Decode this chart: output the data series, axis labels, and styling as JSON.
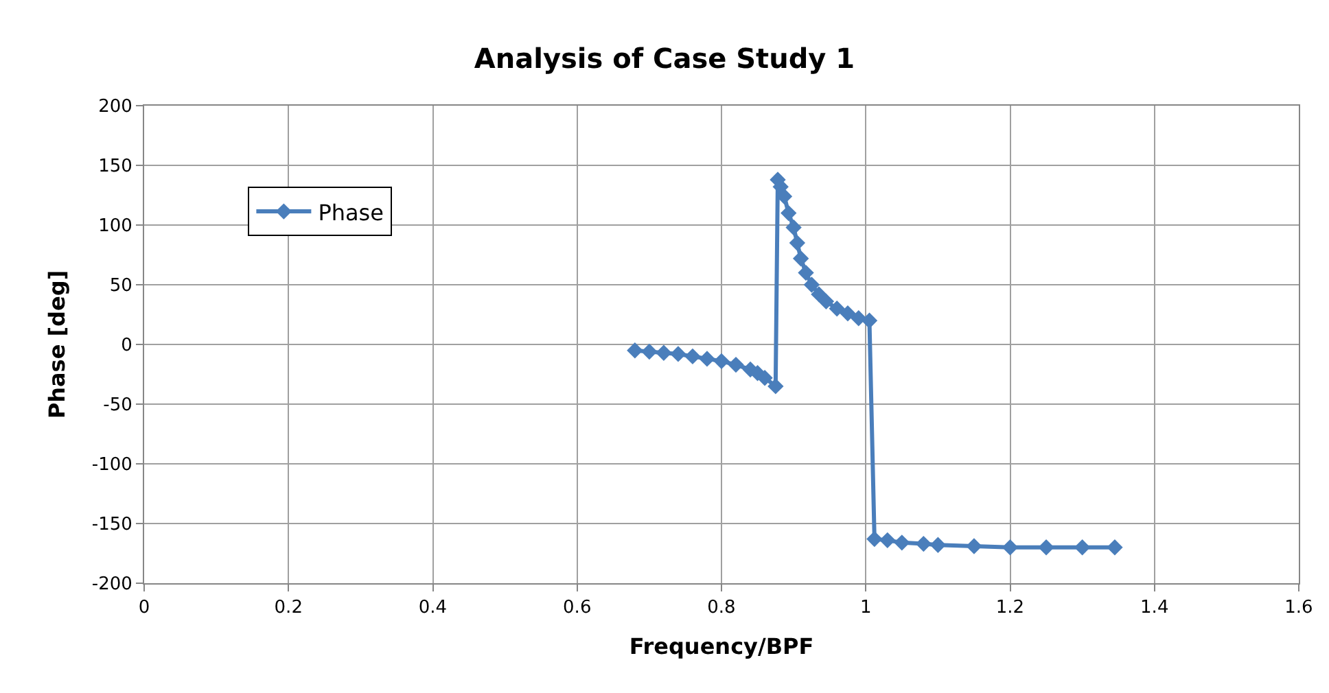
{
  "chart_data": {
    "type": "line",
    "title": "Analysis of Case Study 1",
    "xlabel": "Frequency/BPF",
    "ylabel": "Phase [deg]",
    "xlim": [
      0,
      1.6
    ],
    "xticks": [
      0,
      0.2,
      0.4,
      0.6,
      0.8,
      1,
      1.2,
      1.4,
      1.6
    ],
    "ylim": [
      -200,
      200
    ],
    "yticks": [
      -200,
      -150,
      -100,
      -50,
      0,
      50,
      100,
      150,
      200
    ],
    "grid": true,
    "legend": "top left",
    "marker": "diamond",
    "line_style": "solid",
    "series": [
      {
        "name": "Phase",
        "color": "#4a7ebb",
        "x": [
          0.68,
          0.7,
          0.72,
          0.74,
          0.76,
          0.78,
          0.8,
          0.82,
          0.84,
          0.85,
          0.86,
          0.875,
          0.878,
          0.882,
          0.887,
          0.893,
          0.9,
          0.905,
          0.91,
          0.917,
          0.925,
          0.935,
          0.945,
          0.96,
          0.975,
          0.99,
          1.005,
          1.012,
          1.03,
          1.05,
          1.08,
          1.1,
          1.15,
          1.2,
          1.25,
          1.3,
          1.345
        ],
        "values": [
          -5,
          -6,
          -7,
          -8,
          -10,
          -12,
          -14,
          -17,
          -21,
          -24,
          -28,
          -35,
          138,
          132,
          124,
          110,
          98,
          85,
          72,
          60,
          50,
          42,
          36,
          30,
          26,
          22,
          20,
          -163,
          -164,
          -166,
          -167,
          -168,
          -169,
          -170,
          -170,
          -170,
          -170
        ]
      }
    ]
  }
}
